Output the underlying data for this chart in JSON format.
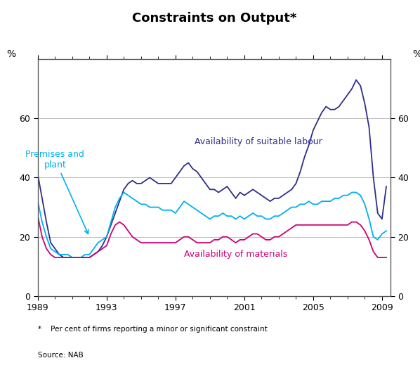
{
  "title": "Constraints on Output*",
  "subtitle": "Per cent",
  "ylabel_left": "%",
  "ylabel_right": "%",
  "footnote": "*    Per cent of firms reporting a minor or significant constraint",
  "source": "Source: NAB",
  "xlim": [
    1989.0,
    2009.5
  ],
  "ylim": [
    0,
    80
  ],
  "yticks": [
    0,
    20,
    40,
    60
  ],
  "xticks": [
    1989,
    1993,
    1997,
    2001,
    2005,
    2009
  ],
  "background_color": "#ffffff",
  "grid_color": "#c0c0c0",
  "labour_color": "#2e2e8b",
  "premises_color": "#00b0f0",
  "materials_color": "#cc0077",
  "labour_label": "Availability of suitable labour",
  "premises_label": "Premises and\nplant",
  "materials_label": "Availability of materials",
  "labour_x": [
    1989.0,
    1989.25,
    1989.5,
    1989.75,
    1990.0,
    1990.25,
    1990.5,
    1990.75,
    1991.0,
    1991.25,
    1991.5,
    1991.75,
    1992.0,
    1992.25,
    1992.5,
    1992.75,
    1993.0,
    1993.25,
    1993.5,
    1993.75,
    1994.0,
    1994.25,
    1994.5,
    1994.75,
    1995.0,
    1995.25,
    1995.5,
    1995.75,
    1996.0,
    1996.25,
    1996.5,
    1996.75,
    1997.0,
    1997.25,
    1997.5,
    1997.75,
    1998.0,
    1998.25,
    1998.5,
    1998.75,
    1999.0,
    1999.25,
    1999.5,
    1999.75,
    2000.0,
    2000.25,
    2000.5,
    2000.75,
    2001.0,
    2001.25,
    2001.5,
    2001.75,
    2002.0,
    2002.25,
    2002.5,
    2002.75,
    2003.0,
    2003.25,
    2003.5,
    2003.75,
    2004.0,
    2004.25,
    2004.5,
    2004.75,
    2005.0,
    2005.25,
    2005.5,
    2005.75,
    2006.0,
    2006.25,
    2006.5,
    2006.75,
    2007.0,
    2007.25,
    2007.5,
    2007.75,
    2008.0,
    2008.25,
    2008.5,
    2008.75,
    2009.0,
    2009.25
  ],
  "labour_y": [
    41,
    33,
    25,
    18,
    16,
    14,
    13,
    13,
    13,
    13,
    13,
    13,
    13,
    14,
    15,
    17,
    20,
    24,
    28,
    32,
    36,
    38,
    39,
    38,
    38,
    39,
    40,
    39,
    38,
    38,
    38,
    38,
    40,
    42,
    44,
    45,
    43,
    42,
    40,
    38,
    36,
    36,
    35,
    36,
    37,
    35,
    33,
    35,
    34,
    35,
    36,
    35,
    34,
    33,
    32,
    33,
    33,
    34,
    35,
    36,
    38,
    42,
    47,
    51,
    56,
    59,
    62,
    64,
    63,
    63,
    64,
    66,
    68,
    70,
    73,
    71,
    65,
    57,
    40,
    28,
    26,
    37
  ],
  "premises_x": [
    1989.0,
    1989.25,
    1989.5,
    1989.75,
    1990.0,
    1990.25,
    1990.5,
    1990.75,
    1991.0,
    1991.25,
    1991.5,
    1991.75,
    1992.0,
    1992.25,
    1992.5,
    1992.75,
    1993.0,
    1993.25,
    1993.5,
    1993.75,
    1994.0,
    1994.25,
    1994.5,
    1994.75,
    1995.0,
    1995.25,
    1995.5,
    1995.75,
    1996.0,
    1996.25,
    1996.5,
    1996.75,
    1997.0,
    1997.25,
    1997.5,
    1997.75,
    1998.0,
    1998.25,
    1998.5,
    1998.75,
    1999.0,
    1999.25,
    1999.5,
    1999.75,
    2000.0,
    2000.25,
    2000.5,
    2000.75,
    2001.0,
    2001.25,
    2001.5,
    2001.75,
    2002.0,
    2002.25,
    2002.5,
    2002.75,
    2003.0,
    2003.25,
    2003.5,
    2003.75,
    2004.0,
    2004.25,
    2004.5,
    2004.75,
    2005.0,
    2005.25,
    2005.5,
    2005.75,
    2006.0,
    2006.25,
    2006.5,
    2006.75,
    2007.0,
    2007.25,
    2007.5,
    2007.75,
    2008.0,
    2008.25,
    2008.5,
    2008.75,
    2009.0,
    2009.25
  ],
  "premises_y": [
    32,
    25,
    20,
    16,
    15,
    14,
    14,
    14,
    13,
    13,
    13,
    14,
    14,
    16,
    18,
    19,
    20,
    25,
    30,
    33,
    35,
    34,
    33,
    32,
    31,
    31,
    30,
    30,
    30,
    29,
    29,
    29,
    28,
    30,
    32,
    31,
    30,
    29,
    28,
    27,
    26,
    27,
    27,
    28,
    27,
    27,
    26,
    27,
    26,
    27,
    28,
    27,
    27,
    26,
    26,
    27,
    27,
    28,
    29,
    30,
    30,
    31,
    31,
    32,
    31,
    31,
    32,
    32,
    32,
    33,
    33,
    34,
    34,
    35,
    35,
    34,
    31,
    26,
    20,
    19,
    21,
    22
  ],
  "materials_x": [
    1989.0,
    1989.25,
    1989.5,
    1989.75,
    1990.0,
    1990.25,
    1990.5,
    1990.75,
    1991.0,
    1991.25,
    1991.5,
    1991.75,
    1992.0,
    1992.25,
    1992.5,
    1992.75,
    1993.0,
    1993.25,
    1993.5,
    1993.75,
    1994.0,
    1994.25,
    1994.5,
    1994.75,
    1995.0,
    1995.25,
    1995.5,
    1995.75,
    1996.0,
    1996.25,
    1996.5,
    1996.75,
    1997.0,
    1997.25,
    1997.5,
    1997.75,
    1998.0,
    1998.25,
    1998.5,
    1998.75,
    1999.0,
    1999.25,
    1999.5,
    1999.75,
    2000.0,
    2000.25,
    2000.5,
    2000.75,
    2001.0,
    2001.25,
    2001.5,
    2001.75,
    2002.0,
    2002.25,
    2002.5,
    2002.75,
    2003.0,
    2003.25,
    2003.5,
    2003.75,
    2004.0,
    2004.25,
    2004.5,
    2004.75,
    2005.0,
    2005.25,
    2005.5,
    2005.75,
    2006.0,
    2006.25,
    2006.5,
    2006.75,
    2007.0,
    2007.25,
    2007.5,
    2007.75,
    2008.0,
    2008.25,
    2008.5,
    2008.75,
    2009.0,
    2009.25
  ],
  "materials_y": [
    27,
    20,
    16,
    14,
    13,
    13,
    13,
    13,
    13,
    13,
    13,
    13,
    13,
    14,
    15,
    16,
    17,
    21,
    24,
    25,
    24,
    22,
    20,
    19,
    18,
    18,
    18,
    18,
    18,
    18,
    18,
    18,
    18,
    19,
    20,
    20,
    19,
    18,
    18,
    18,
    18,
    19,
    19,
    20,
    20,
    19,
    18,
    19,
    19,
    20,
    21,
    21,
    20,
    19,
    19,
    20,
    20,
    21,
    22,
    23,
    24,
    24,
    24,
    24,
    24,
    24,
    24,
    24,
    24,
    24,
    24,
    24,
    24,
    25,
    25,
    24,
    22,
    19,
    15,
    13,
    13,
    13
  ]
}
